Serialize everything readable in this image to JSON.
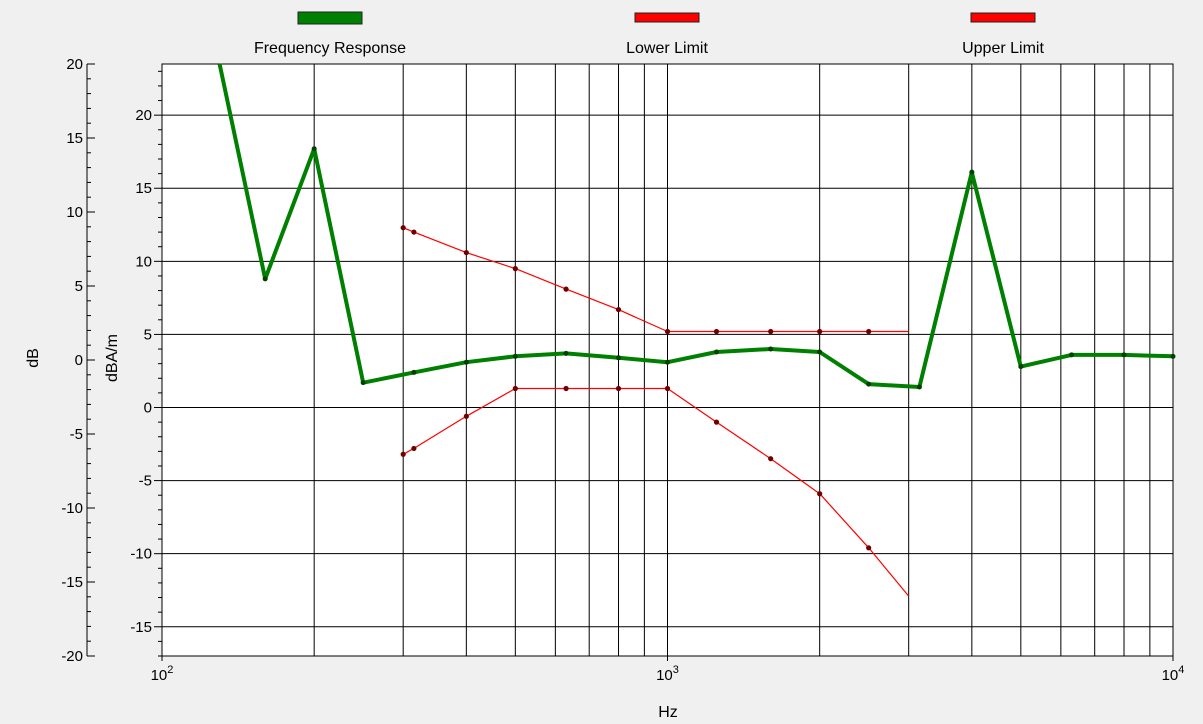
{
  "chart_data": {
    "type": "line",
    "xscale": "log",
    "xlabel": "Hz",
    "xlim": [
      100,
      10000
    ],
    "x_ticks": [
      {
        "value": 100,
        "base": "10",
        "exp": "2"
      },
      {
        "value": 1000,
        "base": "10",
        "exp": "3"
      },
      {
        "value": 10000,
        "base": "10",
        "exp": "4"
      }
    ],
    "x_gridlines": [
      200,
      300,
      400,
      500,
      600,
      700,
      800,
      900,
      1000,
      2000,
      3000,
      4000,
      5000,
      6000,
      7000,
      8000,
      9000
    ],
    "left_axis": {
      "label": "dB",
      "ylim": [
        -20,
        20
      ],
      "major_ticks": [
        "20",
        "15",
        "10",
        "5",
        "0",
        "-5",
        "-10",
        "-15",
        "-20"
      ],
      "minor_step": 1
    },
    "right_axis": {
      "label": "dBA/m",
      "ylim": [
        -17,
        23.5
      ],
      "major_ticks": [
        "20",
        "15",
        "10",
        "5",
        "0",
        "-5",
        "-10",
        "-15"
      ],
      "minor_step": 1
    },
    "grid": true,
    "legend_placement": "top",
    "series": [
      {
        "name": "Frequency Response",
        "color": "#008000",
        "axis": "right",
        "x": [
          130,
          160,
          200,
          250,
          315,
          400,
          500,
          630,
          800,
          1000,
          1250,
          1600,
          2000,
          2500,
          3150,
          4000,
          5000,
          6300,
          8000,
          10000
        ],
        "y": [
          23.5,
          8.8,
          17.7,
          1.7,
          2.4,
          3.1,
          3.5,
          3.7,
          3.4,
          3.1,
          3.8,
          4.0,
          3.8,
          1.6,
          1.4,
          16.1,
          2.8,
          3.6,
          3.6,
          3.5
        ]
      },
      {
        "name": "Lower Limit",
        "color": "#ff0000",
        "axis": "right",
        "x": [
          300,
          315,
          400,
          500,
          630,
          800,
          1000,
          1250,
          1600,
          2000,
          2500,
          3000
        ],
        "y": [
          -3.2,
          -2.8,
          -0.6,
          1.3,
          1.3,
          1.3,
          1.3,
          -1.0,
          -3.5,
          -5.9,
          -9.6,
          -12.9
        ]
      },
      {
        "name": "Upper Limit",
        "color": "#ff0000",
        "axis": "right",
        "x": [
          300,
          315,
          400,
          500,
          630,
          800,
          1000,
          1250,
          1600,
          2000,
          2500,
          3000
        ],
        "y": [
          12.3,
          12.0,
          10.6,
          9.5,
          8.1,
          6.7,
          5.2,
          5.2,
          5.2,
          5.2,
          5.2,
          5.2
        ]
      }
    ]
  }
}
